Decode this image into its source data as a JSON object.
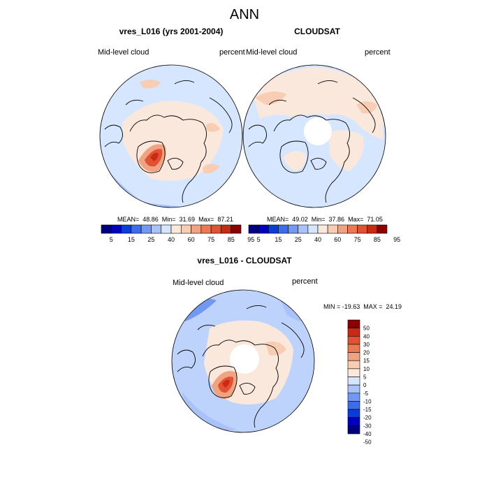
{
  "main_title": "ANN",
  "palette": [
    "#00007f",
    "#0000bf",
    "#0a3cd6",
    "#3d6ee8",
    "#7398f2",
    "#a9c3fa",
    "#d6e6ff",
    "#fbe8dc",
    "#f7cdb4",
    "#f0a383",
    "#ea7a56",
    "#e05232",
    "#c72a15",
    "#8b0000"
  ],
  "panels": [
    {
      "title": "vres_L016 (yrs 2001-2004)",
      "variable": "Mid-level cloud",
      "units": "percent",
      "stats_text": "MEAN=  48.86  Min=  31.69  Max=  87.21"
    },
    {
      "title": "CLOUDSAT",
      "variable": "Mid-level cloud",
      "units": "percent",
      "stats_text": "MEAN=  49.02  Min=  37.86  Max=  71.05"
    },
    {
      "title": "vres_L016 - CLOUDSAT",
      "variable": "Mid-level cloud",
      "units": "percent",
      "stats_text": "MIN = -19.63  MAX =  24.19"
    }
  ],
  "colorbar_levels": [
    "5",
    "15",
    "25",
    "40",
    "60",
    "75",
    "85",
    "95"
  ],
  "diff_colorbar_levels": [
    "50",
    "40",
    "30",
    "20",
    "15",
    "10",
    "5",
    "0",
    "-5",
    "-10",
    "-15",
    "-20",
    "-30",
    "-40",
    "-50"
  ],
  "chart_data": [
    {
      "type": "heatmap",
      "title": "vres_L016 (yrs 2001-2004)",
      "variable": "Mid-level cloud",
      "units": "percent",
      "projection": "north polar stereographic",
      "mean": 48.86,
      "min": 31.69,
      "max": 87.21,
      "levels": [
        5,
        10,
        15,
        20,
        25,
        30,
        40,
        50,
        60,
        70,
        75,
        80,
        85,
        90,
        95
      ]
    },
    {
      "type": "heatmap",
      "title": "CLOUDSAT",
      "variable": "Mid-level cloud",
      "units": "percent",
      "projection": "north polar stereographic",
      "mean": 49.02,
      "min": 37.86,
      "max": 71.05,
      "levels": [
        5,
        10,
        15,
        20,
        25,
        30,
        40,
        50,
        60,
        70,
        75,
        80,
        85,
        90,
        95
      ]
    },
    {
      "type": "heatmap",
      "title": "vres_L016 - CLOUDSAT",
      "variable": "Mid-level cloud",
      "units": "percent",
      "projection": "north polar stereographic",
      "min": -19.63,
      "max": 24.19,
      "levels": [
        -50,
        -40,
        -30,
        -20,
        -15,
        -10,
        -5,
        0,
        5,
        10,
        15,
        20,
        30,
        40,
        50
      ]
    }
  ]
}
